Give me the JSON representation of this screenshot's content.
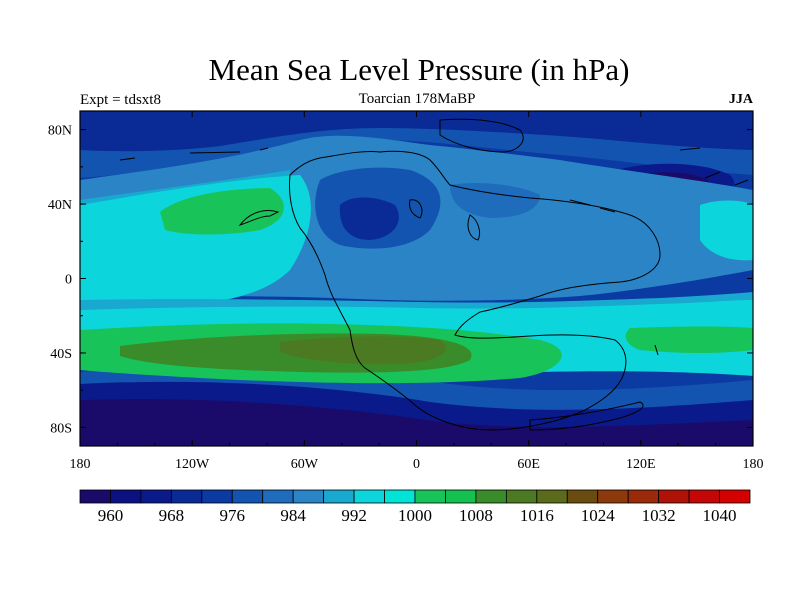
{
  "title": "Mean Sea Level Pressure (in hPa)",
  "subtitle_left": "Expt = tdsxt8",
  "subtitle_center": "Toarcian 178MaBP",
  "subtitle_right": "JJA",
  "map": {
    "projection": "cylindrical equidistant",
    "lon_range": [
      -180,
      180
    ],
    "lat_range": [
      -90,
      90
    ],
    "x_ticks": [
      "180",
      "120W",
      "60W",
      "0",
      "60E",
      "120E",
      "180"
    ],
    "y_ticks": [
      "80N",
      "40N",
      "0",
      "40S",
      "80S"
    ]
  },
  "colorbar": {
    "labels": [
      "960",
      "968",
      "976",
      "984",
      "992",
      "1000",
      "1008",
      "1016",
      "1024",
      "1032",
      "1040"
    ],
    "colors": [
      "#1a0b6b",
      "#0d1080",
      "#0b1a8a",
      "#0a2a96",
      "#0a3aa2",
      "#1354b0",
      "#1f6cbc",
      "#2a84c6",
      "#18a8d0",
      "#0cd6dc",
      "#00e4d8",
      "#18c45a",
      "#14c050",
      "#3a8c2a",
      "#4c7a22",
      "#5c6a1c",
      "#6a4c10",
      "#8c3a0c",
      "#9a2a0a",
      "#b01208",
      "#c40606",
      "#d40000"
    ]
  }
}
